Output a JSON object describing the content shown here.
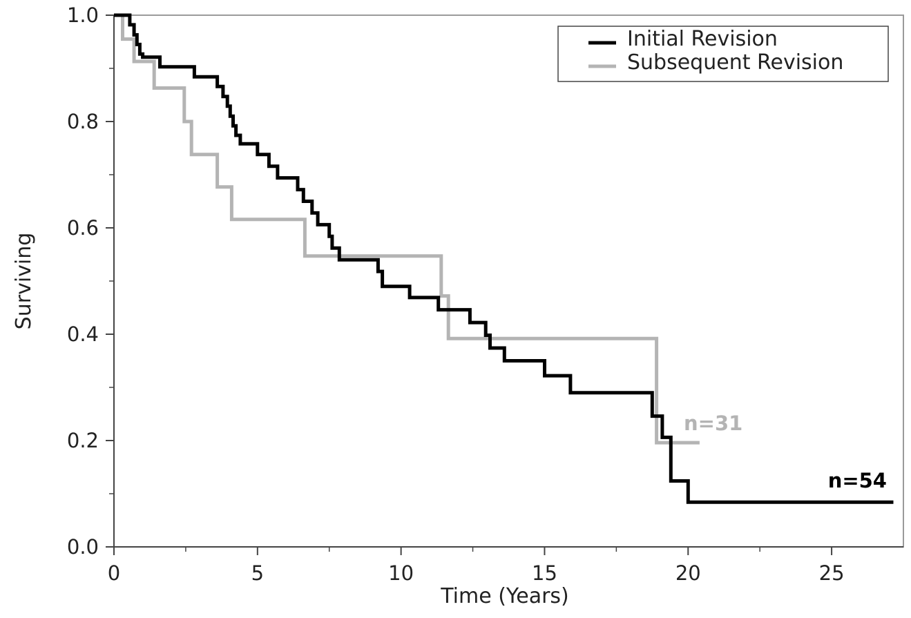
{
  "chart_data": {
    "type": "line",
    "subtype": "kaplan-meier step",
    "xlabel": "Time (Years)",
    "ylabel": "Surviving",
    "xlim": [
      0,
      27.5
    ],
    "ylim": [
      0,
      1.0
    ],
    "xticks": [
      "0",
      "5",
      "10",
      "15",
      "20",
      "25"
    ],
    "yticks": [
      "0.0",
      "0.2",
      "0.4",
      "0.6",
      "0.8",
      "1.0"
    ],
    "grid": false,
    "legend_position": "top-right",
    "series": [
      {
        "name": "Initial Revision",
        "color": "#000000",
        "end_label": "n=54",
        "points": [
          [
            0,
            1.0
          ],
          [
            0.55,
            1.0
          ],
          [
            0.55,
            0.982
          ],
          [
            0.7,
            0.982
          ],
          [
            0.7,
            0.963
          ],
          [
            0.8,
            0.963
          ],
          [
            0.8,
            0.945
          ],
          [
            0.9,
            0.945
          ],
          [
            0.9,
            0.927
          ],
          [
            1.0,
            0.927
          ],
          [
            1.0,
            0.921
          ],
          [
            1.6,
            0.921
          ],
          [
            1.6,
            0.903
          ],
          [
            2.8,
            0.903
          ],
          [
            2.8,
            0.884
          ],
          [
            3.6,
            0.884
          ],
          [
            3.6,
            0.866
          ],
          [
            3.8,
            0.866
          ],
          [
            3.8,
            0.847
          ],
          [
            3.95,
            0.847
          ],
          [
            3.95,
            0.829
          ],
          [
            4.05,
            0.829
          ],
          [
            4.05,
            0.81
          ],
          [
            4.15,
            0.81
          ],
          [
            4.15,
            0.792
          ],
          [
            4.25,
            0.792
          ],
          [
            4.25,
            0.774
          ],
          [
            4.4,
            0.774
          ],
          [
            4.4,
            0.758
          ],
          [
            5.0,
            0.758
          ],
          [
            5.0,
            0.738
          ],
          [
            5.4,
            0.738
          ],
          [
            5.4,
            0.716
          ],
          [
            5.7,
            0.716
          ],
          [
            5.7,
            0.694
          ],
          [
            6.4,
            0.694
          ],
          [
            6.4,
            0.672
          ],
          [
            6.6,
            0.672
          ],
          [
            6.6,
            0.65
          ],
          [
            6.9,
            0.65
          ],
          [
            6.9,
            0.628
          ],
          [
            7.1,
            0.628
          ],
          [
            7.1,
            0.606
          ],
          [
            7.5,
            0.606
          ],
          [
            7.5,
            0.584
          ],
          [
            7.6,
            0.584
          ],
          [
            7.6,
            0.562
          ],
          [
            7.85,
            0.562
          ],
          [
            7.85,
            0.54
          ],
          [
            9.2,
            0.54
          ],
          [
            9.2,
            0.518
          ],
          [
            9.35,
            0.518
          ],
          [
            9.35,
            0.49
          ],
          [
            10.3,
            0.49
          ],
          [
            10.3,
            0.469
          ],
          [
            11.3,
            0.469
          ],
          [
            11.3,
            0.446
          ],
          [
            12.4,
            0.446
          ],
          [
            12.4,
            0.422
          ],
          [
            12.95,
            0.422
          ],
          [
            12.95,
            0.398
          ],
          [
            13.1,
            0.398
          ],
          [
            13.1,
            0.374
          ],
          [
            13.6,
            0.374
          ],
          [
            13.6,
            0.35
          ],
          [
            15.0,
            0.35
          ],
          [
            15.0,
            0.322
          ],
          [
            15.9,
            0.322
          ],
          [
            15.9,
            0.29
          ],
          [
            18.75,
            0.29
          ],
          [
            18.75,
            0.246
          ],
          [
            19.1,
            0.246
          ],
          [
            19.1,
            0.206
          ],
          [
            19.4,
            0.206
          ],
          [
            19.4,
            0.124
          ],
          [
            20.0,
            0.124
          ],
          [
            20.0,
            0.084
          ],
          [
            27.15,
            0.084
          ]
        ]
      },
      {
        "name": "Subsequent Revision",
        "color": "#b4b4b4",
        "end_label": "n=31",
        "points": [
          [
            0,
            1.0
          ],
          [
            0.3,
            1.0
          ],
          [
            0.3,
            0.955
          ],
          [
            0.7,
            0.955
          ],
          [
            0.7,
            0.913
          ],
          [
            1.4,
            0.913
          ],
          [
            1.4,
            0.863
          ],
          [
            2.45,
            0.863
          ],
          [
            2.45,
            0.8
          ],
          [
            2.7,
            0.8
          ],
          [
            2.7,
            0.738
          ],
          [
            3.6,
            0.738
          ],
          [
            3.6,
            0.677
          ],
          [
            4.1,
            0.677
          ],
          [
            4.1,
            0.616
          ],
          [
            6.65,
            0.616
          ],
          [
            6.65,
            0.547
          ],
          [
            11.4,
            0.547
          ],
          [
            11.4,
            0.472
          ],
          [
            11.65,
            0.472
          ],
          [
            11.65,
            0.392
          ],
          [
            18.9,
            0.392
          ],
          [
            18.9,
            0.196
          ],
          [
            20.4,
            0.196
          ]
        ]
      }
    ]
  }
}
